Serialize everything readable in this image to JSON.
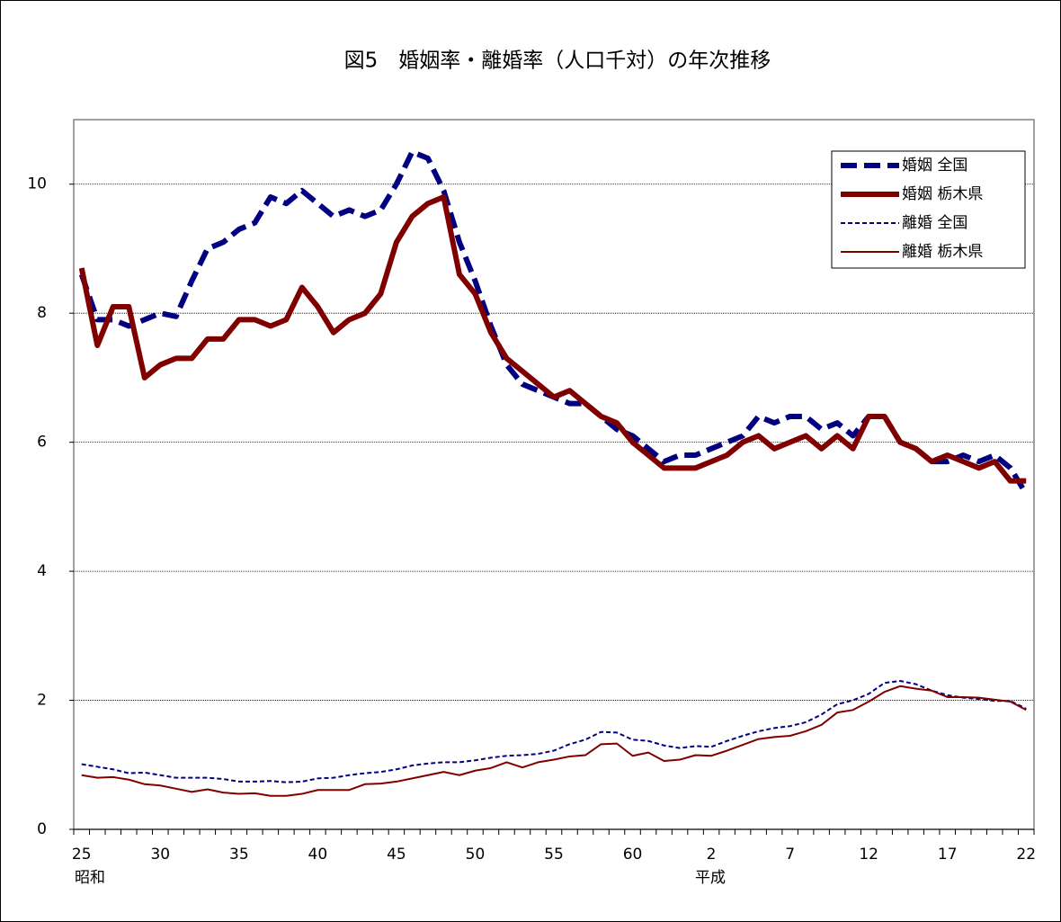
{
  "chart_data": {
    "type": "line",
    "title": "図5　婚姻率・離婚率（人口千対）の年次推移",
    "categories": [
      "25",
      null,
      null,
      null,
      null,
      "30",
      null,
      null,
      null,
      null,
      "35",
      null,
      null,
      null,
      null,
      "40",
      null,
      null,
      null,
      null,
      "45",
      null,
      null,
      null,
      null,
      "50",
      null,
      null,
      null,
      null,
      "55",
      null,
      null,
      null,
      null,
      "60",
      null,
      null,
      null,
      null,
      "2",
      null,
      null,
      null,
      null,
      "7",
      null,
      null,
      null,
      null,
      "12",
      null,
      null,
      null,
      null,
      "17",
      null,
      null,
      null,
      null,
      "22"
    ],
    "era_labels": [
      "昭和",
      "平成"
    ],
    "ylim": [
      0,
      11
    ],
    "yticks": [
      0,
      2,
      4,
      6,
      8,
      10
    ],
    "grid": true,
    "legend": "top-right",
    "series": [
      {
        "name": "婚姻 全国",
        "color": "#000080",
        "style": "dashed",
        "weight": "thick",
        "values": [
          8.6,
          7.9,
          7.9,
          7.8,
          7.9,
          8.0,
          7.95,
          8.5,
          9.0,
          9.1,
          9.3,
          9.4,
          9.8,
          9.7,
          9.9,
          9.7,
          9.5,
          9.6,
          9.5,
          9.6,
          10.0,
          10.5,
          10.4,
          9.9,
          9.1,
          8.5,
          7.8,
          7.2,
          6.9,
          6.8,
          6.7,
          6.6,
          6.6,
          6.4,
          6.2,
          6.1,
          5.9,
          5.7,
          5.8,
          5.8,
          5.9,
          6.0,
          6.1,
          6.4,
          6.3,
          6.4,
          6.4,
          6.2,
          6.3,
          6.1,
          6.4,
          6.4,
          6.0,
          5.9,
          5.7,
          5.7,
          5.8,
          5.7,
          5.8,
          5.6,
          5.2
        ]
      },
      {
        "name": "婚姻 栃木県",
        "color": "#800000",
        "style": "solid",
        "weight": "thick",
        "values": [
          8.7,
          7.5,
          8.1,
          8.1,
          7.0,
          7.2,
          7.3,
          7.3,
          7.6,
          7.6,
          7.9,
          7.9,
          7.8,
          7.9,
          8.4,
          8.1,
          7.7,
          7.9,
          8.0,
          8.3,
          9.1,
          9.5,
          9.7,
          9.8,
          8.6,
          8.3,
          7.7,
          7.3,
          7.1,
          6.9,
          6.7,
          6.8,
          6.6,
          6.4,
          6.3,
          6.0,
          5.8,
          5.6,
          5.6,
          5.6,
          5.7,
          5.8,
          6.0,
          6.1,
          5.9,
          6.0,
          6.1,
          5.9,
          6.1,
          5.9,
          6.4,
          6.4,
          6.0,
          5.9,
          5.7,
          5.8,
          5.7,
          5.6,
          5.7,
          5.4,
          5.4
        ]
      },
      {
        "name": "離婚 全国",
        "color": "#000080",
        "style": "dashed",
        "weight": "thin",
        "values": [
          1.01,
          0.97,
          0.93,
          0.87,
          0.88,
          0.84,
          0.8,
          0.8,
          0.8,
          0.78,
          0.74,
          0.74,
          0.75,
          0.73,
          0.74,
          0.79,
          0.8,
          0.84,
          0.87,
          0.89,
          0.93,
          0.99,
          1.02,
          1.04,
          1.04,
          1.07,
          1.11,
          1.14,
          1.15,
          1.17,
          1.22,
          1.32,
          1.39,
          1.51,
          1.5,
          1.39,
          1.37,
          1.3,
          1.26,
          1.29,
          1.28,
          1.37,
          1.45,
          1.52,
          1.57,
          1.6,
          1.66,
          1.78,
          1.94,
          2.0,
          2.1,
          2.27,
          2.3,
          2.25,
          2.15,
          2.08,
          2.04,
          2.02,
          1.99,
          1.99,
          1.87
        ]
      },
      {
        "name": "離婚 栃木県",
        "color": "#800000",
        "style": "solid",
        "weight": "thin",
        "values": [
          0.84,
          0.8,
          0.81,
          0.77,
          0.7,
          0.68,
          0.63,
          0.58,
          0.62,
          0.57,
          0.55,
          0.56,
          0.52,
          0.52,
          0.55,
          0.61,
          0.61,
          0.61,
          0.7,
          0.71,
          0.74,
          0.79,
          0.84,
          0.89,
          0.84,
          0.91,
          0.95,
          1.04,
          0.96,
          1.04,
          1.08,
          1.13,
          1.15,
          1.32,
          1.33,
          1.14,
          1.19,
          1.06,
          1.08,
          1.15,
          1.14,
          1.22,
          1.31,
          1.4,
          1.43,
          1.45,
          1.52,
          1.62,
          1.81,
          1.85,
          1.98,
          2.13,
          2.22,
          2.18,
          2.15,
          2.05,
          2.05,
          2.04,
          2.01,
          1.98,
          1.85
        ]
      }
    ]
  }
}
